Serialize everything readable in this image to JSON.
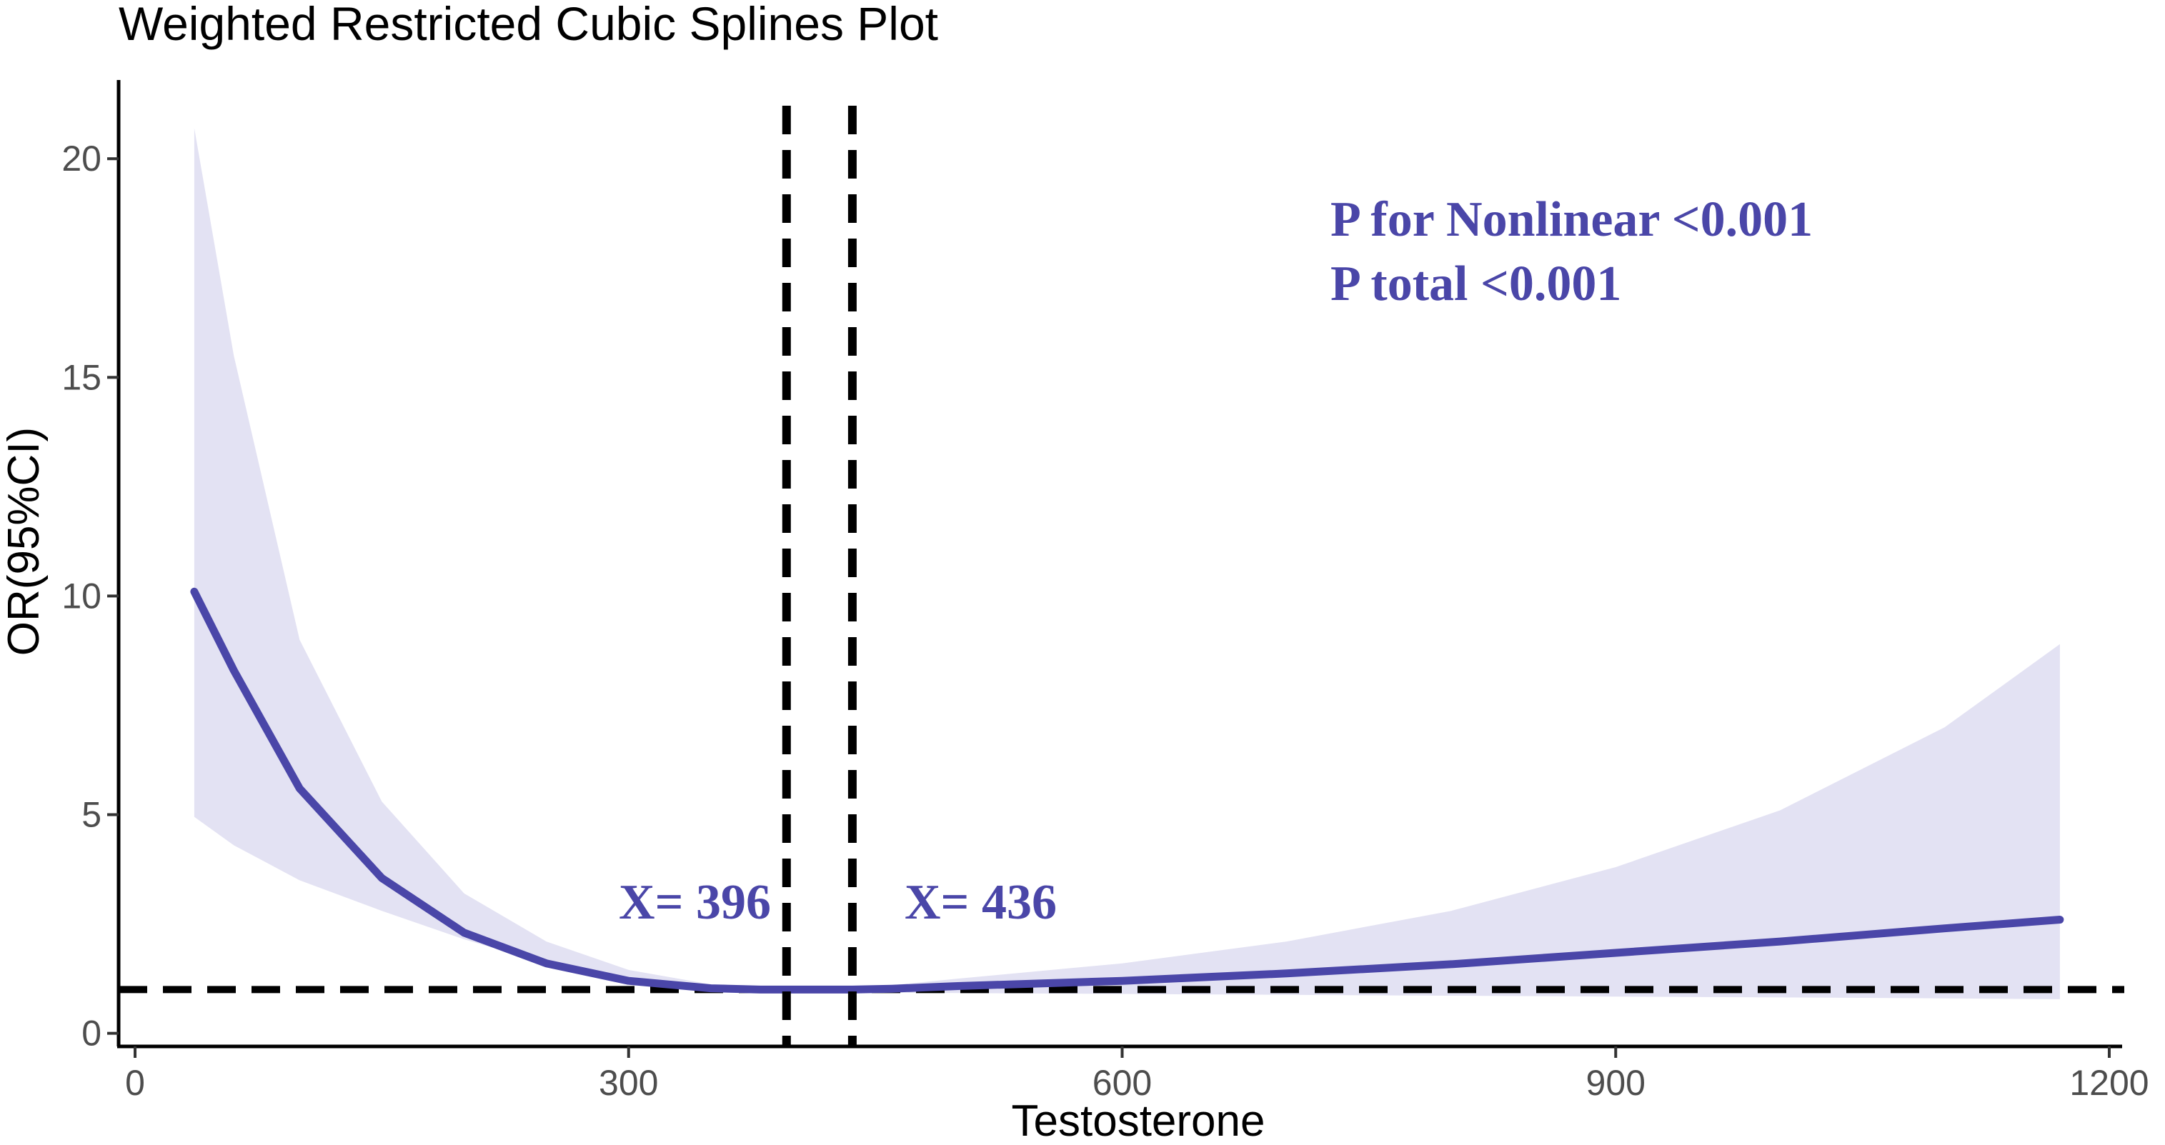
{
  "chart_data": {
    "type": "line",
    "title": "Weighted Restricted Cubic Splines Plot",
    "xlabel": "Testosterone",
    "ylabel": "OR(95%CI)",
    "xlim": [
      -10,
      1210
    ],
    "ylim": [
      -0.3,
      21.8
    ],
    "x_ticks": [
      0,
      300,
      600,
      900,
      1200
    ],
    "y_ticks": [
      0,
      5,
      10,
      15,
      20
    ],
    "grid": false,
    "colors": {
      "curve": "#4a46a8",
      "band": "#e3e2f3",
      "reference": "#000000",
      "annotation": "#4a46a8"
    },
    "series": [
      {
        "x": [
          36,
          60,
          100,
          150,
          200,
          250,
          300,
          350,
          380,
          396,
          420,
          436,
          460,
          500,
          600,
          700,
          800,
          900,
          1000,
          1100,
          1170
        ],
        "y": [
          10.1,
          8.3,
          5.6,
          3.55,
          2.3,
          1.6,
          1.2,
          1.03,
          1.0,
          1.0,
          1.0,
          1.0,
          1.02,
          1.08,
          1.2,
          1.37,
          1.58,
          1.84,
          2.1,
          2.4,
          2.6
        ],
        "lower": [
          4.95,
          4.3,
          3.5,
          2.8,
          2.15,
          1.6,
          1.18,
          1.0,
          0.97,
          0.97,
          0.95,
          0.94,
          0.93,
          0.92,
          0.9,
          0.88,
          0.86,
          0.84,
          0.82,
          0.8,
          0.78
        ],
        "upper": [
          20.7,
          15.5,
          9.0,
          5.3,
          3.2,
          2.1,
          1.45,
          1.12,
          1.05,
          1.04,
          1.04,
          1.05,
          1.1,
          1.25,
          1.6,
          2.1,
          2.8,
          3.8,
          5.1,
          7.0,
          8.9
        ]
      }
    ],
    "reference_lines": {
      "horizontal_y": 1,
      "vertical_x": [
        396,
        436
      ]
    },
    "annotations": {
      "left_knot": "X= 396",
      "right_knot": "X= 436",
      "p_nonlinear": "P for Nonlinear <0.001",
      "p_total": "P total <0.001"
    }
  }
}
